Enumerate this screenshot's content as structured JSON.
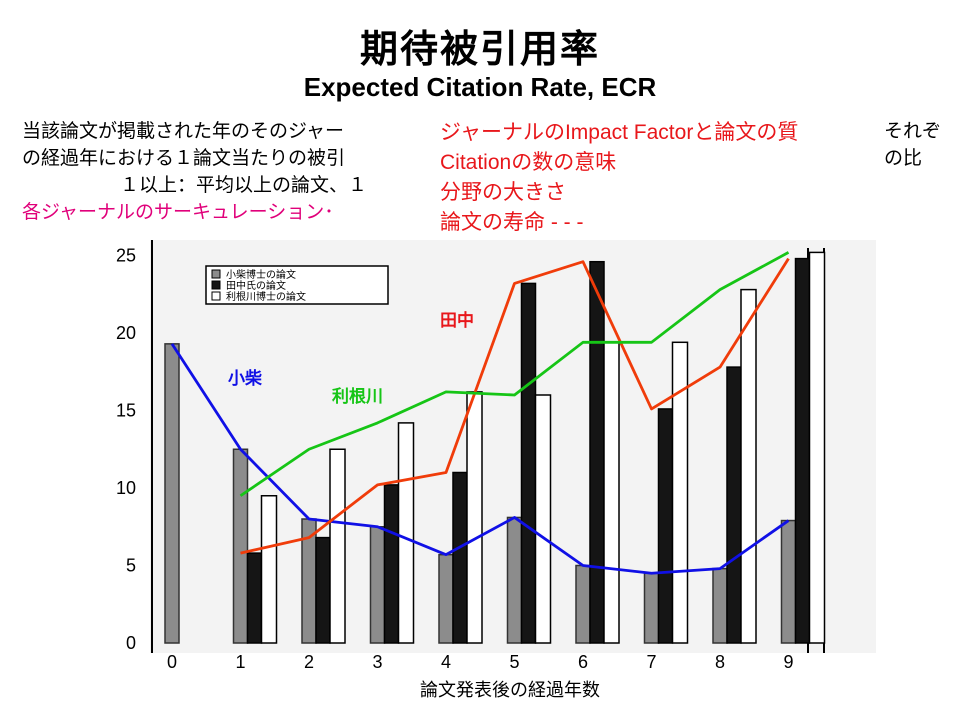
{
  "title_jp": "期待被引用率",
  "title_en": "Expected Citation Rate, ECR",
  "notes_left": [
    "当該論文が掲載された年のそのジャー",
    "の経過年における１論文当たりの被引",
    "１以上：平均以上の論文、１",
    "各ジャーナルのサーキュレーション･"
  ],
  "notes_red": [
    "ジャーナルのImpact Factorと論文の質",
    "Citationの数の意味",
    "分野の大きさ",
    "論文の寿命 - - -"
  ],
  "notes_right": [
    "それぞ",
    "の比"
  ],
  "colors": {
    "koshiba_line": "#1010e6",
    "tanaka_line": "#f03c0a",
    "tone_line": "#16c516",
    "koshiba_bar": "#8c8c8c",
    "tanaka_bar": "#151515",
    "tone_bar": "#ffffff",
    "pink": "#e0007a",
    "red": "#e8171b"
  },
  "chart_data": {
    "type": "bar",
    "title": "期待被引用率",
    "xlabel": "論文発表後の経過年数",
    "ylabel": "",
    "x_ticks": [
      "0",
      "1",
      "2",
      "3",
      "4",
      "5",
      "6",
      "7",
      "8",
      "9"
    ],
    "y_ticks": [
      "0",
      "5",
      "10",
      "15",
      "20",
      "25"
    ],
    "ylim": [
      0,
      25
    ],
    "legend_position": "top-left",
    "legend": [
      "小柴博士の論文",
      "田中氏の論文",
      "利根川博士の論文"
    ],
    "series": [
      {
        "name": "小柴博士の論文",
        "label": "小柴",
        "style": "gray-bar",
        "values": [
          19.3,
          12.5,
          8.0,
          7.5,
          5.7,
          8.1,
          5.0,
          4.5,
          4.8,
          7.9
        ]
      },
      {
        "name": "田中氏の論文",
        "label": "田中",
        "style": "black-bar",
        "values": [
          null,
          5.8,
          6.8,
          10.2,
          11.0,
          23.2,
          24.6,
          15.1,
          17.8,
          24.8
        ]
      },
      {
        "name": "利根川博士の論文",
        "label": "利根川",
        "style": "white-bar",
        "values": [
          null,
          9.5,
          12.5,
          14.2,
          16.2,
          16.0,
          19.4,
          19.4,
          22.8,
          25.2
        ]
      }
    ]
  }
}
